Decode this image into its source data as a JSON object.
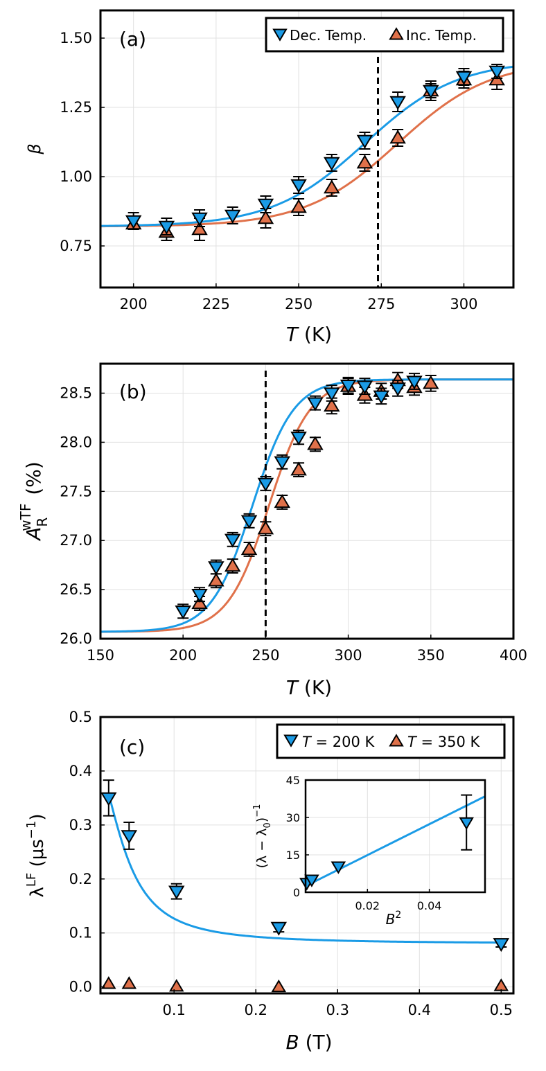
{
  "colors": {
    "dec": "#1a9be6",
    "inc": "#e0714a",
    "grid": "#e0e0e0",
    "axis": "#000000"
  },
  "chart_data": [
    {
      "id": "a",
      "type": "scatter",
      "panel_label": "(a)",
      "xlabel_var": "T",
      "xlabel_unit": "(K)",
      "ylabel": "β",
      "xlim": [
        190,
        315
      ],
      "ylim": [
        0.6,
        1.6
      ],
      "xticks": [
        200,
        225,
        250,
        275,
        300
      ],
      "xtick_labels": [
        "200",
        "225",
        "250",
        "275",
        "300"
      ],
      "yticks": [
        0.75,
        1.0,
        1.25,
        1.5
      ],
      "ytick_labels": [
        "0.75",
        "1.00",
        "1.25",
        "1.50"
      ],
      "vline": 274,
      "legend": {
        "position": "top-right",
        "entries": [
          "Dec. Temp.",
          "Inc. Temp."
        ]
      },
      "fit": {
        "base": 0.82,
        "amp": 0.6,
        "dec_center": 270.0,
        "inc_center": 280.0,
        "width": 14.0
      },
      "series": [
        {
          "name": "Dec. Temp.",
          "marker": "down",
          "x": [
            200,
            210,
            220,
            230,
            240,
            250,
            260,
            270,
            280,
            290,
            300,
            310
          ],
          "y": [
            0.84,
            0.82,
            0.85,
            0.86,
            0.9,
            0.97,
            1.05,
            1.13,
            1.27,
            1.31,
            1.36,
            1.38
          ],
          "err": [
            0.03,
            0.03,
            0.03,
            0.03,
            0.03,
            0.03,
            0.03,
            0.03,
            0.035,
            0.035,
            0.03,
            0.025
          ]
        },
        {
          "name": "Inc. Temp.",
          "marker": "up",
          "x": [
            200,
            210,
            220,
            240,
            250,
            260,
            270,
            280,
            290,
            300,
            310
          ],
          "y": [
            0.83,
            0.8,
            0.81,
            0.85,
            0.89,
            0.96,
            1.05,
            1.14,
            1.31,
            1.35,
            1.35
          ],
          "err": [
            0.02,
            0.03,
            0.04,
            0.035,
            0.03,
            0.03,
            0.03,
            0.03,
            0.025,
            0.03,
            0.035
          ]
        }
      ]
    },
    {
      "id": "b",
      "type": "scatter",
      "panel_label": "(b)",
      "xlabel_var": "T",
      "xlabel_unit": "(K)",
      "ylabel_main": "A",
      "ylabel_sub": "R",
      "ylabel_sup": "wTF",
      "ylabel_unit": "(%)",
      "xlim": [
        150,
        400
      ],
      "ylim": [
        26.0,
        28.8
      ],
      "xticks": [
        150,
        200,
        250,
        300,
        350,
        400
      ],
      "xtick_labels": [
        "150",
        "200",
        "250",
        "300",
        "350",
        "400"
      ],
      "yticks": [
        26.0,
        26.5,
        27.0,
        27.5,
        28.0,
        28.5
      ],
      "ytick_labels": [
        "26.0",
        "26.5",
        "27.0",
        "27.5",
        "28.0",
        "28.5"
      ],
      "vline": 250,
      "fit": {
        "base": 26.07,
        "amp": 2.57,
        "dec_center": 242.0,
        "inc_center": 252.0,
        "width": 12.5
      },
      "series": [
        {
          "name": "Dec. Temp.",
          "marker": "down",
          "x": [
            200,
            210,
            220,
            230,
            240,
            250,
            260,
            270,
            280,
            290,
            300,
            310,
            320,
            330,
            340
          ],
          "y": [
            26.28,
            26.45,
            26.73,
            27.01,
            27.2,
            27.58,
            27.8,
            28.05,
            28.4,
            28.5,
            28.58,
            28.57,
            28.47,
            28.55,
            28.62
          ],
          "err": [
            0.07,
            0.07,
            0.07,
            0.07,
            0.07,
            0.07,
            0.07,
            0.07,
            0.07,
            0.08,
            0.08,
            0.08,
            0.08,
            0.08,
            0.08
          ]
        },
        {
          "name": "Inc. Temp.",
          "marker": "up",
          "x": [
            210,
            220,
            230,
            240,
            250,
            260,
            270,
            280,
            290,
            300,
            310,
            320,
            330,
            340,
            350
          ],
          "y": [
            26.36,
            26.59,
            26.74,
            26.91,
            27.12,
            27.39,
            27.72,
            27.98,
            28.37,
            28.57,
            28.48,
            28.52,
            28.63,
            28.56,
            28.6
          ],
          "err": [
            0.07,
            0.07,
            0.07,
            0.07,
            0.07,
            0.07,
            0.07,
            0.07,
            0.08,
            0.08,
            0.08,
            0.08,
            0.08,
            0.08,
            0.08
          ]
        }
      ]
    },
    {
      "id": "c",
      "type": "scatter",
      "panel_label": "(c)",
      "xlabel_var": "B",
      "xlabel_unit": "(T)",
      "ylabel_main": "λ",
      "ylabel_sup": "LF",
      "ylabel_unit": "(μs",
      "ylabel_unit_sup": "−1",
      "ylabel_unit_close": ")",
      "xlim": [
        0.01,
        0.515
      ],
      "ylim": [
        -0.012,
        0.5
      ],
      "xticks": [
        0.1,
        0.2,
        0.3,
        0.4,
        0.5
      ],
      "xtick_labels": [
        "0.1",
        "0.2",
        "0.3",
        "0.4",
        "0.5"
      ],
      "yticks": [
        0.0,
        0.1,
        0.2,
        0.3,
        0.4,
        0.5
      ],
      "ytick_labels": [
        "0.0",
        "0.1",
        "0.2",
        "0.3",
        "0.4",
        "0.5"
      ],
      "legend": {
        "position": "top-right",
        "entries": [
          {
            "var": "T",
            "value": "= 200 K"
          },
          {
            "var": "T",
            "value": "= 350 K"
          }
        ]
      },
      "fit": {
        "lambda0": 0.08,
        "a": 0.02,
        "b": 650
      },
      "series": [
        {
          "name": "T = 200 K",
          "marker": "down",
          "x": [
            0.02,
            0.045,
            0.103,
            0.228,
            0.5
          ],
          "y": [
            0.35,
            0.28,
            0.177,
            0.11,
            0.08
          ],
          "err": [
            0.033,
            0.025,
            0.014,
            0.008,
            0.006
          ]
        },
        {
          "name": "T = 350 K",
          "marker": "up",
          "x": [
            0.02,
            0.045,
            0.103,
            0.228,
            0.5
          ],
          "y": [
            0.006,
            0.006,
            0.001,
            0.0,
            0.002
          ],
          "err": [
            0,
            0,
            0,
            0,
            0
          ]
        }
      ],
      "inset": {
        "type": "scatter",
        "xlabel": "B",
        "xlabel_sup": "2",
        "ylabel": "(λ − λ",
        "ylabel_sub": "0",
        "ylabel_close": ")",
        "ylabel_sup": "−1",
        "xlim": [
          0,
          0.058
        ],
        "ylim": [
          0,
          45
        ],
        "xticks": [
          0.02,
          0.04
        ],
        "xtick_labels": [
          "0.02",
          "0.04"
        ],
        "yticks": [
          0,
          15,
          30,
          45
        ],
        "ytick_labels": [
          "0",
          "15",
          "30",
          "45"
        ],
        "fit": {
          "intercept": 2.5,
          "slope": 620
        },
        "series": [
          {
            "name": "T = 200 K",
            "marker": "down",
            "x": [
              0.0004,
              0.002,
              0.0106,
              0.052
            ],
            "y": [
              3.7,
              5.0,
              10.3,
              28.0
            ],
            "err": [
              0,
              0,
              0,
              11.0
            ]
          }
        ]
      }
    }
  ]
}
